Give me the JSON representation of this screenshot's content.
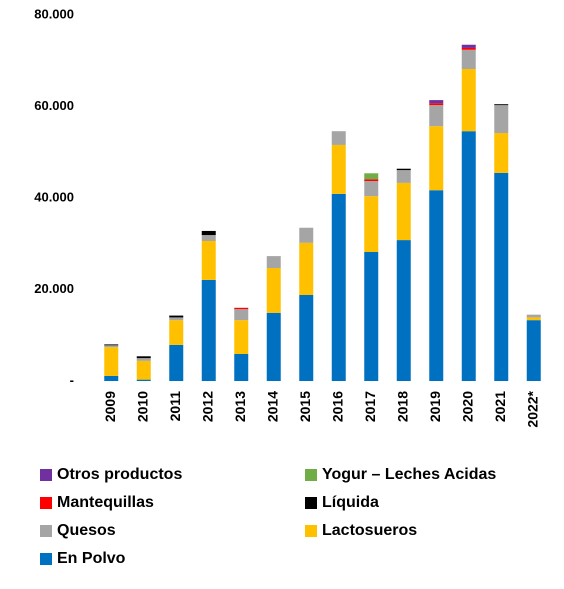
{
  "chart_data": {
    "type": "stacked-bar",
    "categories": [
      "2009",
      "2010",
      "2011",
      "2012",
      "2013",
      "2014",
      "2015",
      "2016",
      "2017",
      "2018",
      "2019",
      "2020",
      "2021",
      "2022*"
    ],
    "ylim": [
      0,
      80000
    ],
    "yticks": [
      {
        "value": 0,
        "label": "-"
      },
      {
        "value": 20000,
        "label": "20.000"
      },
      {
        "value": 40000,
        "label": "40.000"
      },
      {
        "value": 60000,
        "label": "60.000"
      },
      {
        "value": 80000,
        "label": "80.000"
      }
    ],
    "grid": false,
    "series": [
      {
        "name": "En Polvo",
        "color": "#0070C0",
        "values": [
          1100,
          300,
          7900,
          22100,
          5900,
          14900,
          18800,
          40900,
          28200,
          30800,
          41700,
          54600,
          45500,
          13300
        ]
      },
      {
        "name": "Lactosueros",
        "color": "#FFC000",
        "values": [
          6300,
          4100,
          5400,
          8500,
          7400,
          9800,
          11400,
          10700,
          12200,
          12500,
          14000,
          13600,
          8700,
          600
        ]
      },
      {
        "name": "Quesos",
        "color": "#A5A5A5",
        "values": [
          400,
          600,
          600,
          1300,
          2400,
          2600,
          3300,
          3000,
          3300,
          2800,
          4600,
          4200,
          6100,
          600
        ]
      },
      {
        "name": "Líquida",
        "color": "#000000",
        "values": [
          200,
          400,
          400,
          900,
          0,
          0,
          0,
          0,
          0,
          300,
          0,
          0,
          200,
          0
        ]
      },
      {
        "name": "Mantequillas",
        "color": "#FF0000",
        "values": [
          0,
          0,
          0,
          0,
          300,
          0,
          0,
          0,
          400,
          0,
          400,
          400,
          0,
          0
        ]
      },
      {
        "name": "Yogur – Leches Acidas",
        "color": "#70AD47",
        "values": [
          0,
          0,
          0,
          0,
          0,
          0,
          0,
          0,
          1300,
          0,
          0,
          0,
          0,
          0
        ]
      },
      {
        "name": "Otros productos",
        "color": "#7030A0",
        "values": [
          0,
          0,
          0,
          0,
          0,
          0,
          0,
          0,
          0,
          0,
          700,
          700,
          0,
          0
        ]
      }
    ]
  }
}
